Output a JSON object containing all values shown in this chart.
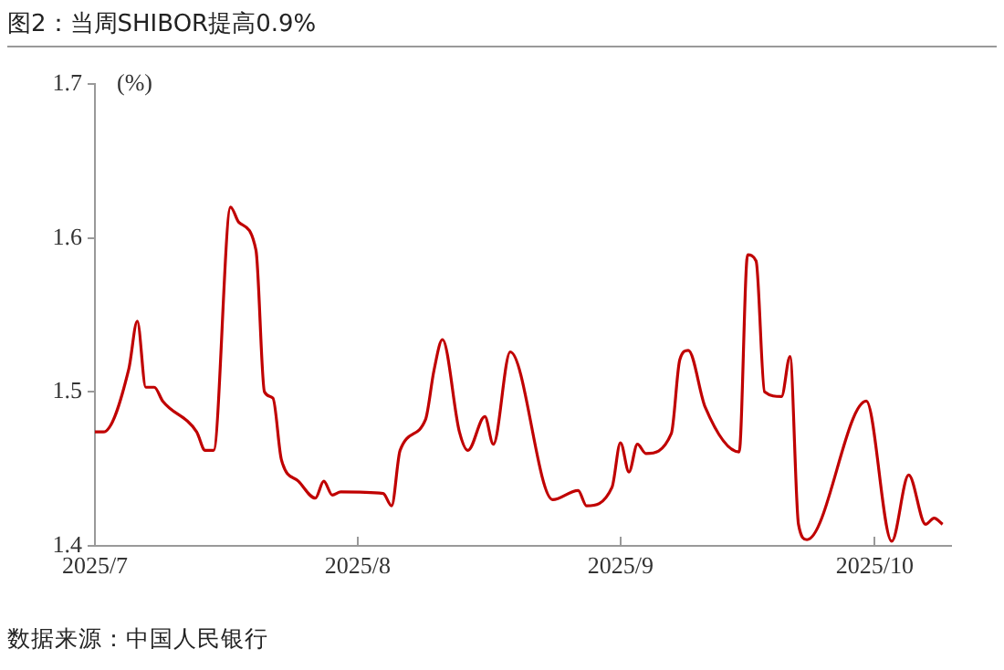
{
  "chart_data": {
    "type": "line",
    "title": "图2：当周SHIBOR提高0.9%",
    "ylabel": "(%)",
    "annotations": [
      "数据来源：中国人民银行"
    ],
    "x": [
      "2025-07-01",
      "2025-07-02",
      "2025-07-05",
      "2025-07-06",
      "2025-07-07",
      "2025-07-08",
      "2025-07-09",
      "2025-07-13",
      "2025-07-14",
      "2025-07-15",
      "2025-07-17",
      "2025-07-18",
      "2025-07-20",
      "2025-07-21",
      "2025-07-22",
      "2025-07-23",
      "2025-07-25",
      "2025-07-27",
      "2025-07-28",
      "2025-07-29",
      "2025-07-30",
      "2025-08-04",
      "2025-08-05",
      "2025-08-06",
      "2025-08-09",
      "2025-08-10",
      "2025-08-11",
      "2025-08-13",
      "2025-08-14",
      "2025-08-16",
      "2025-08-17",
      "2025-08-19",
      "2025-08-24",
      "2025-08-27",
      "2025-08-28",
      "2025-08-31",
      "2025-09-01",
      "2025-09-02",
      "2025-09-03",
      "2025-09-04",
      "2025-09-07",
      "2025-09-08",
      "2025-09-09",
      "2025-09-11",
      "2025-09-15",
      "2025-09-16",
      "2025-09-17",
      "2025-09-18",
      "2025-09-20",
      "2025-09-21",
      "2025-09-22",
      "2025-09-23",
      "2025-09-30",
      "2025-10-03",
      "2025-10-05",
      "2025-10-07",
      "2025-10-08",
      "2025-10-09"
    ],
    "series": [
      {
        "color": "#c00000",
        "values": [
          1.474,
          1.474,
          1.515,
          1.546,
          1.503,
          1.503,
          1.494,
          1.474,
          1.462,
          1.462,
          1.62,
          1.61,
          1.592,
          1.5,
          1.496,
          1.456,
          1.442,
          1.431,
          1.442,
          1.433,
          1.435,
          1.434,
          1.426,
          1.462,
          1.482,
          1.514,
          1.534,
          1.474,
          1.462,
          1.484,
          1.466,
          1.526,
          1.43,
          1.436,
          1.426,
          1.438,
          1.467,
          1.448,
          1.466,
          1.46,
          1.473,
          1.521,
          1.527,
          1.49,
          1.461,
          1.589,
          1.585,
          1.5,
          1.497,
          1.523,
          1.414,
          1.404,
          1.494,
          1.403,
          1.446,
          1.414,
          1.418,
          1.414
        ]
      }
    ],
    "xlim": [
      "2025-07-01",
      "2025-10-10"
    ],
    "xticks": [
      {
        "value": "2025-07-01",
        "label": "2025/7"
      },
      {
        "value": "2025-08-01",
        "label": "2025/8"
      },
      {
        "value": "2025-09-01",
        "label": "2025/9"
      },
      {
        "value": "2025-10-01",
        "label": "2025/10"
      }
    ],
    "ylim": [
      1.4,
      1.7
    ],
    "yticks": [
      1.4,
      1.5,
      1.6,
      1.7
    ],
    "grid": false,
    "legend": false,
    "line_style": "solid",
    "marker": "none"
  }
}
